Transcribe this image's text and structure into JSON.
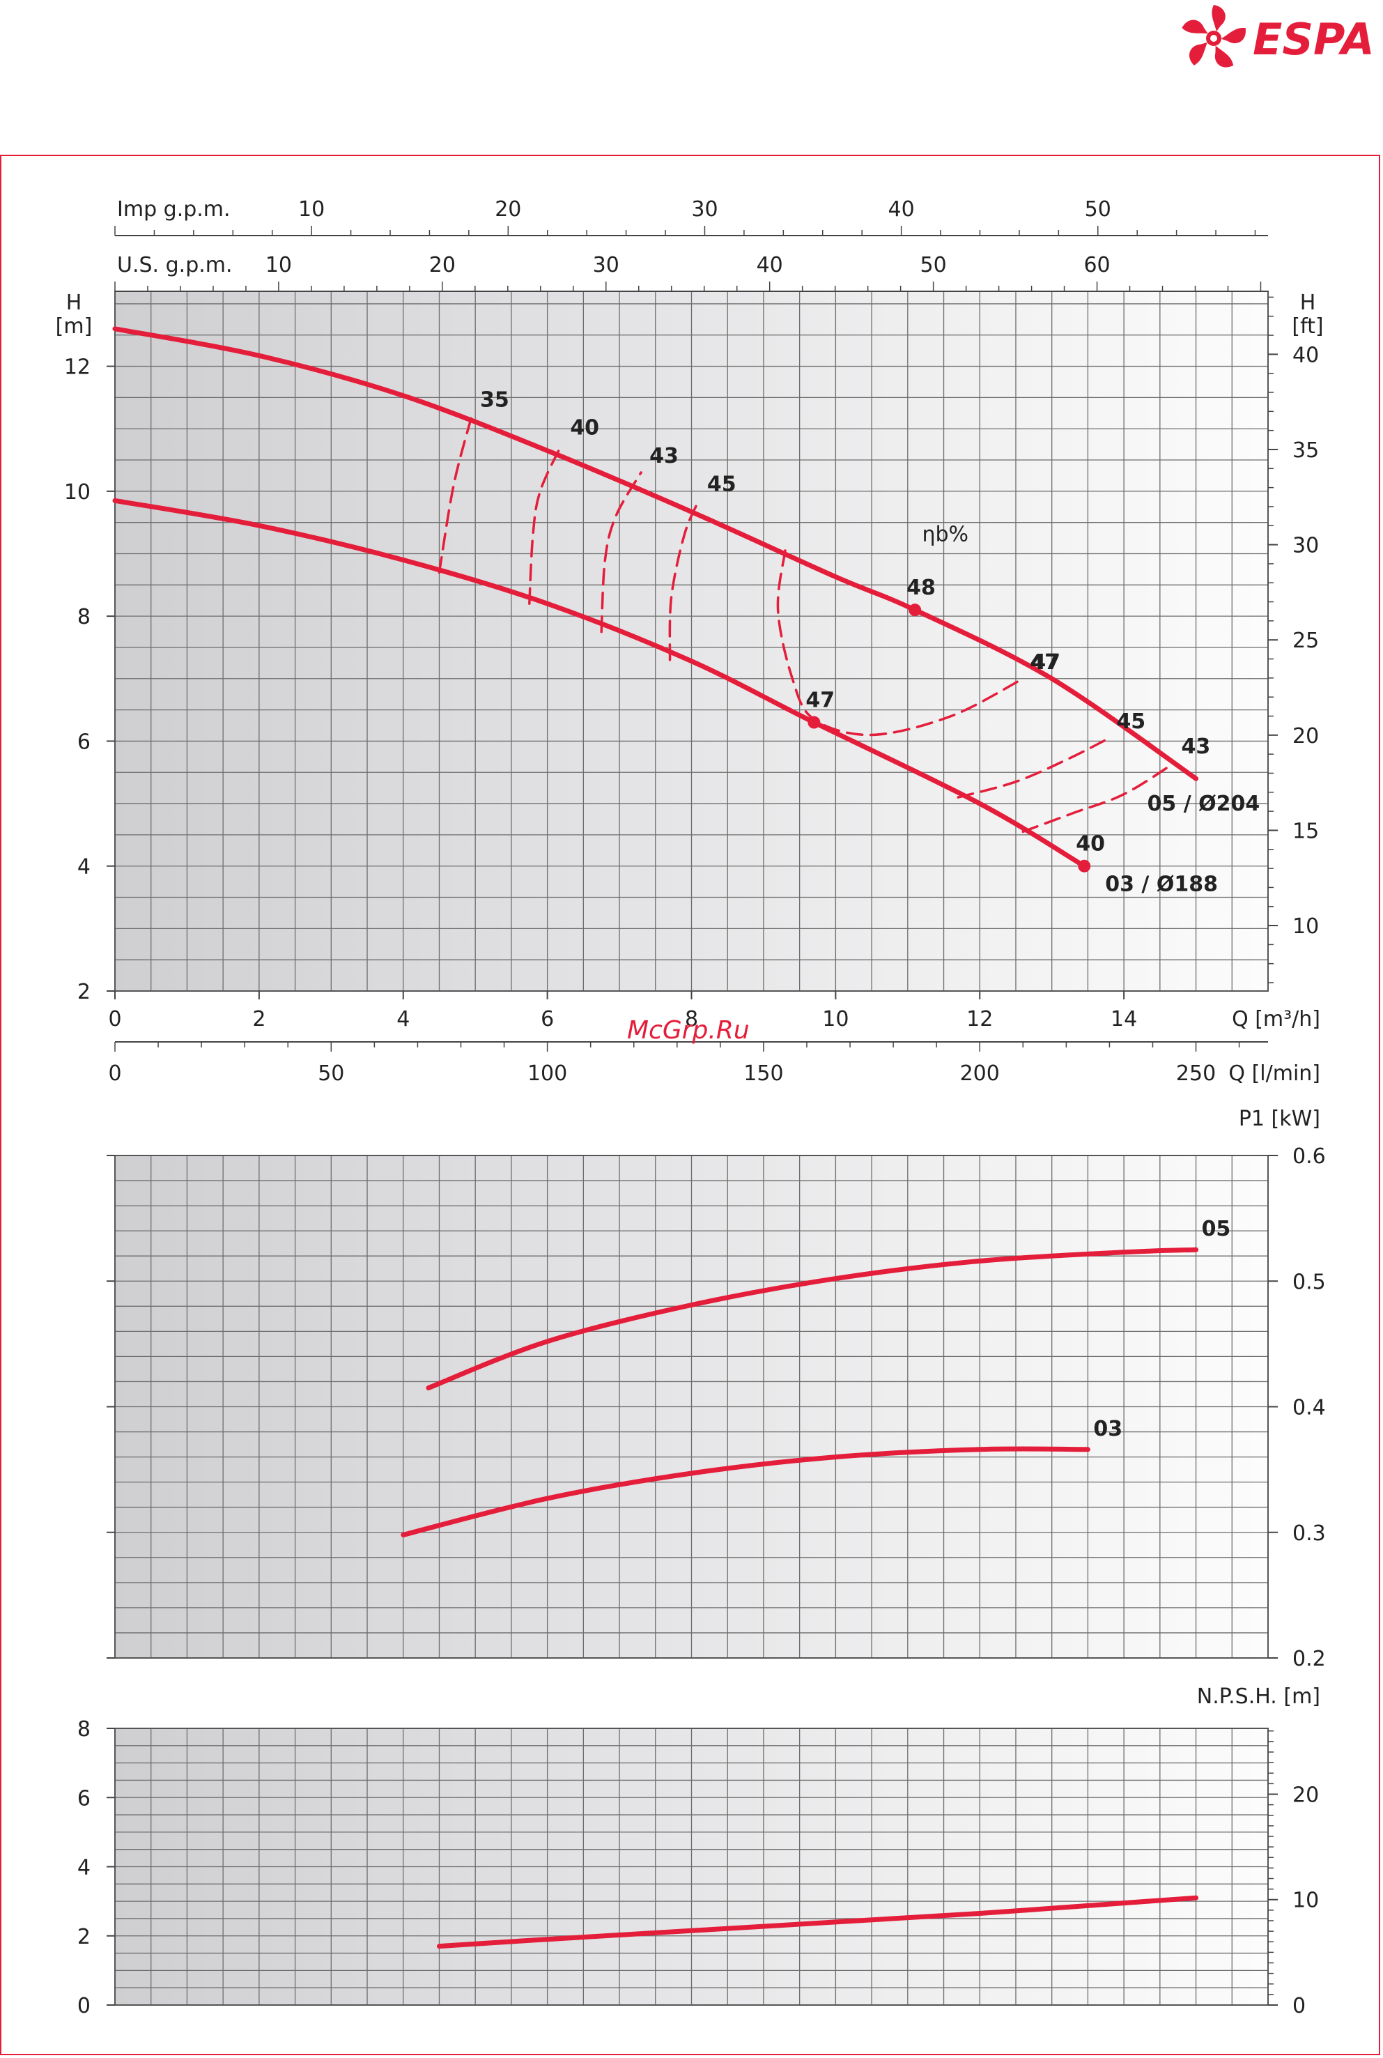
{
  "brand": {
    "name": "ESPA",
    "color": "#e41e3a"
  },
  "watermark": "McGrp.Ru",
  "colors": {
    "curve": "#e41e3a",
    "grid": "#6d6d6d",
    "frame": "#e41e3a",
    "text": "#222222"
  },
  "chart_data": [
    {
      "type": "line",
      "name": "head",
      "xlabel": "Q [m³/h]",
      "ylabel_left": "H\n[m]",
      "ylabel_right": "H\n[ft]",
      "xlim": [
        0,
        16
      ],
      "ylim": [
        2,
        13.2
      ],
      "grid": true,
      "x_ticks": [
        "0",
        "2",
        "4",
        "6",
        "8",
        "10",
        "12",
        "14"
      ],
      "y_ticks": [
        "2",
        "4",
        "6",
        "8",
        "10",
        "12"
      ],
      "right_ticks": [
        "10",
        "15",
        "20",
        "25",
        "30",
        "35",
        "40"
      ],
      "secondary_axes": [
        {
          "label": "Imp g.p.m.",
          "ticks": [
            "10",
            "20",
            "30",
            "40",
            "50"
          ]
        },
        {
          "label": "U.S. g.p.m.",
          "ticks": [
            "10",
            "20",
            "30",
            "40",
            "50",
            "60"
          ]
        },
        {
          "label": "Q [l/min]",
          "ticks": [
            "0",
            "50",
            "100",
            "150",
            "200",
            "250"
          ]
        }
      ],
      "series": [
        {
          "name": "05 / Ø204",
          "x": [
            0,
            2,
            4,
            6,
            8,
            10,
            11.1,
            13,
            15
          ],
          "y": [
            12.6,
            12.17,
            11.53,
            10.65,
            9.67,
            8.63,
            8.1,
            7.0,
            5.4
          ]
        },
        {
          "name": "03 / Ø188",
          "x": [
            0,
            2,
            4,
            6,
            8,
            9.7,
            12,
            13.45
          ],
          "y": [
            9.85,
            9.45,
            8.9,
            8.2,
            7.28,
            6.3,
            5.0,
            4.0
          ]
        }
      ],
      "efficiency_label": "ηb%",
      "efficiency_curves": [
        {
          "label": "35",
          "x": [
            4.5,
            4.7,
            4.95
          ],
          "y": [
            8.7,
            10.1,
            11.2
          ]
        },
        {
          "label": "40",
          "x": [
            5.75,
            5.8,
            5.9,
            6.2
          ],
          "y": [
            8.2,
            9.3,
            10.0,
            10.75
          ]
        },
        {
          "label": "43",
          "x": [
            6.75,
            6.8,
            6.95,
            7.3
          ],
          "y": [
            7.75,
            8.9,
            9.6,
            10.3
          ]
        },
        {
          "label": "45",
          "x": [
            7.7,
            7.72,
            7.9,
            8.1
          ],
          "y": [
            7.3,
            8.3,
            9.3,
            9.85
          ]
        },
        {
          "label": "47",
          "x": [
            9.3,
            9.2,
            9.4,
            9.7,
            10.5,
            11.6,
            12.6
          ],
          "y": [
            9.05,
            8.1,
            7.0,
            6.35,
            6.1,
            6.4,
            7.0
          ]
        },
        {
          "label": "45",
          "x": [
            11.7,
            12.5,
            13.2,
            13.8
          ],
          "y": [
            5.1,
            5.35,
            5.7,
            6.05
          ]
        },
        {
          "label": "43",
          "x": [
            12.6,
            13.3,
            14.0,
            14.7
          ],
          "y": [
            4.55,
            4.85,
            5.15,
            5.65
          ]
        }
      ],
      "points": [
        {
          "label": "48",
          "x": 11.1,
          "y": 8.1
        },
        {
          "label": "47",
          "x": 9.7,
          "y": 6.3
        },
        {
          "label": "40",
          "x": 13.45,
          "y": 4.0
        }
      ],
      "extra_labels": [
        {
          "text": "47",
          "x": 12.6,
          "y": 7.0
        },
        {
          "text": "45",
          "x": 13.8,
          "y": 6.05
        },
        {
          "text": "43",
          "x": 14.7,
          "y": 5.65
        }
      ]
    },
    {
      "type": "line",
      "name": "power",
      "ylabel": "P1 [kW]",
      "xlim": [
        0,
        16
      ],
      "ylim": [
        0.2,
        0.6
      ],
      "y_ticks": [
        "0.2",
        "0.3",
        "0.4",
        "0.5",
        "0.6"
      ],
      "grid": true,
      "series": [
        {
          "name": "05",
          "x": [
            4.35,
            6,
            8,
            10,
            12,
            14,
            15
          ],
          "y": [
            0.415,
            0.452,
            0.481,
            0.502,
            0.516,
            0.523,
            0.525
          ]
        },
        {
          "name": "03",
          "x": [
            4,
            6,
            8,
            10,
            12,
            13.5
          ],
          "y": [
            0.298,
            0.327,
            0.347,
            0.36,
            0.366,
            0.366
          ]
        }
      ]
    },
    {
      "type": "line",
      "name": "npsh",
      "ylabel": "N.P.S.H. [m]",
      "xlim": [
        0,
        16
      ],
      "ylim": [
        0,
        8
      ],
      "y_ticks": [
        "0",
        "2",
        "4",
        "6",
        "8"
      ],
      "right_ticks": [
        "0",
        "10",
        "20"
      ],
      "grid": true,
      "series": [
        {
          "name": "",
          "x": [
            4.5,
            6,
            8,
            10,
            12,
            14,
            15
          ],
          "y": [
            1.7,
            1.9,
            2.15,
            2.4,
            2.65,
            2.95,
            3.1
          ]
        }
      ]
    }
  ]
}
